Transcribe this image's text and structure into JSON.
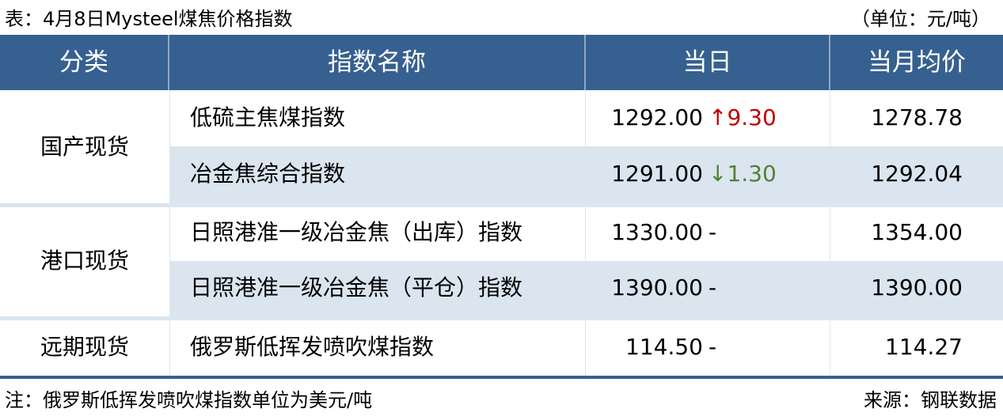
{
  "title": "表：4月8日Mysteel煤焦价格指数",
  "unit": "（单位：元/吨）",
  "header": {
    "category": "分类",
    "name": "指数名称",
    "day": "当日",
    "month": "当月均价"
  },
  "groups": [
    {
      "category": "国产现货"
    },
    {
      "category": "港口现货"
    },
    {
      "category": "远期现货"
    }
  ],
  "rows": [
    {
      "name": "低硫主焦煤指数",
      "price": "1292.00",
      "direction": "up",
      "arrow": "↑",
      "change": "9.30",
      "month": "1278.78"
    },
    {
      "name": "冶金焦综合指数",
      "price": "1291.00",
      "direction": "down",
      "arrow": "↓",
      "change": "1.30",
      "month": "1292.04"
    },
    {
      "name": "日照港准一级冶金焦（出库）指数",
      "price": "1330.00",
      "direction": "flat",
      "arrow": "",
      "change": "-",
      "month": "1354.00"
    },
    {
      "name": "日照港准一级冶金焦（平仓）指数",
      "price": "1390.00",
      "direction": "flat",
      "arrow": "",
      "change": "-",
      "month": "1390.00"
    },
    {
      "name": "俄罗斯低挥发喷吹煤指数",
      "price": "114.50",
      "direction": "flat",
      "arrow": "",
      "change": "-",
      "month": "114.27"
    }
  ],
  "colors": {
    "header": "#36608f",
    "shade": "#dbe5f0",
    "up": "#c00000",
    "down": "#538135"
  },
  "footer": {
    "note": "注：俄罗斯低挥发喷吹煤指数单位为美元/吨",
    "source": "来源：钢联数据"
  }
}
